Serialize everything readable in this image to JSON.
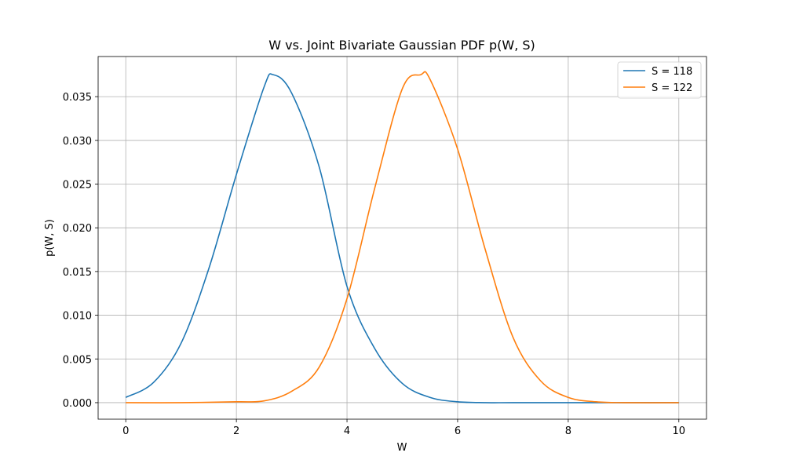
{
  "chart_data": {
    "type": "line",
    "title": "W vs. Joint Bivariate Gaussian PDF p(W, S)",
    "xlabel": "W",
    "ylabel": "p(W, S)",
    "xlim": [
      -0.5,
      10.5
    ],
    "ylim": [
      -0.00189,
      0.03959
    ],
    "xticks": [
      0,
      2,
      4,
      6,
      8,
      10
    ],
    "xtick_labels": [
      "0",
      "2",
      "4",
      "6",
      "8",
      "10"
    ],
    "yticks": [
      0.0,
      0.005,
      0.01,
      0.015,
      0.02,
      0.025,
      0.03,
      0.035
    ],
    "ytick_labels": [
      "0.000",
      "0.005",
      "0.010",
      "0.015",
      "0.020",
      "0.025",
      "0.030",
      "0.035"
    ],
    "grid": true,
    "legend_position": "top-right",
    "series": [
      {
        "name": "S = 118",
        "color": "#1f77b4",
        "x": [
          0,
          0.5,
          1,
          1.5,
          2,
          2.5,
          2.67,
          3,
          3.5,
          4,
          4.5,
          5,
          5.5,
          6,
          6.5,
          7,
          8,
          9,
          10
        ],
        "y": [
          0.0006,
          0.0023,
          0.0068,
          0.0153,
          0.0261,
          0.0361,
          0.0375,
          0.0354,
          0.0269,
          0.0133,
          0.0062,
          0.0022,
          0.0006,
          0.0001,
          0.0,
          0.0,
          0.0,
          0.0,
          0.0
        ]
      },
      {
        "name": "S = 122",
        "color": "#ff7f0e",
        "x": [
          0,
          1,
          2,
          2.5,
          3,
          3.5,
          4,
          4.5,
          5,
          5.33,
          5.5,
          6,
          6.5,
          7,
          7.5,
          8,
          8.5,
          9,
          10
        ],
        "y": [
          0.0,
          0.0,
          0.0001,
          0.0002,
          0.0013,
          0.0041,
          0.0119,
          0.0245,
          0.0359,
          0.0375,
          0.037,
          0.029,
          0.0175,
          0.0075,
          0.0025,
          0.0006,
          0.0001,
          0.0,
          0.0
        ]
      }
    ]
  }
}
